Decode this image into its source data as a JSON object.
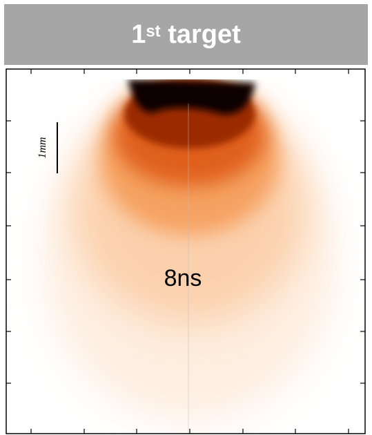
{
  "header": {
    "title_main": "1",
    "title_sup": "st",
    "title_rest": "target"
  },
  "panel": {
    "scale_label": "1mm",
    "time_label": "8ns"
  }
}
